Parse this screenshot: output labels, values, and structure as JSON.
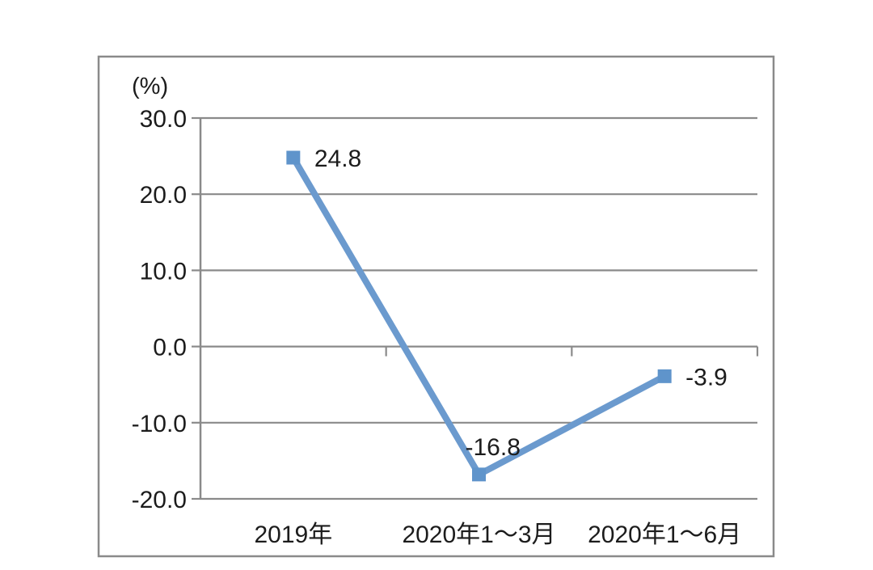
{
  "chart_data": {
    "type": "line",
    "title": "",
    "unit_label": "(%)",
    "categories": [
      "2019年",
      "2020年1～3月",
      "2020年1～6月"
    ],
    "series": [
      {
        "name": "",
        "values": [
          24.8,
          -16.8,
          -3.9
        ]
      }
    ],
    "data_labels": [
      "24.8",
      "-16.8",
      "-3.9"
    ],
    "data_label_positions": [
      "right",
      "above-right",
      "right"
    ],
    "ylim": [
      -20,
      30
    ],
    "ytick_values": [
      30,
      20,
      10,
      0,
      -10,
      -20
    ],
    "ytick_labels": [
      "30.0",
      "20.0",
      "10.0",
      "0.0",
      "-10.0",
      "-20.0"
    ],
    "grid": true,
    "legend_position": "none",
    "colors": {
      "line": "#6b9ace",
      "marker": "#5f94cb",
      "grid": "#8a8a8a",
      "border": "#8a8a8a",
      "text": "#1c1c1c"
    }
  }
}
